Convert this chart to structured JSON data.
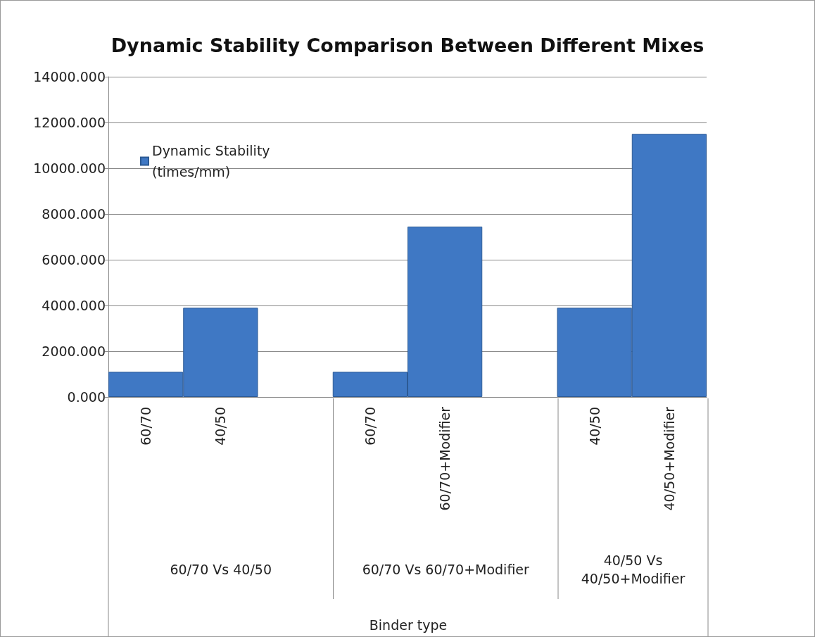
{
  "chart_data": {
    "type": "bar",
    "title": "Dynamic Stability Comparison Between Different Mixes",
    "categories": [
      "60/70",
      "40/50",
      null,
      "60/70",
      "60/70+Modifier",
      null,
      "40/50",
      "40/50+Modifier"
    ],
    "series": [
      {
        "name": "Dynamic Stability (times/mm)",
        "color": "#3f78c4",
        "values": [
          1100,
          3900,
          null,
          1100,
          7450,
          null,
          3900,
          11500
        ]
      }
    ],
    "annotations": [
      "60/70 Vs 40/50",
      "60/70 Vs 60/70+Modifier",
      "40/50 Vs 40/50+Modifier",
      "Binder type"
    ],
    "ylim": [
      0,
      14000
    ],
    "yticks": [
      {
        "value": 0,
        "label": "0.000"
      },
      {
        "value": 2000,
        "label": "2000.000"
      },
      {
        "value": 4000,
        "label": "4000.000"
      },
      {
        "value": 6000,
        "label": "6000.000"
      },
      {
        "value": 8000,
        "label": "8000.000"
      },
      {
        "value": 10000,
        "label": "10000.000"
      },
      {
        "value": 12000,
        "label": "12000.000"
      },
      {
        "value": 14000,
        "label": "14000.000"
      }
    ],
    "grid": "y",
    "legend": "top left"
  }
}
